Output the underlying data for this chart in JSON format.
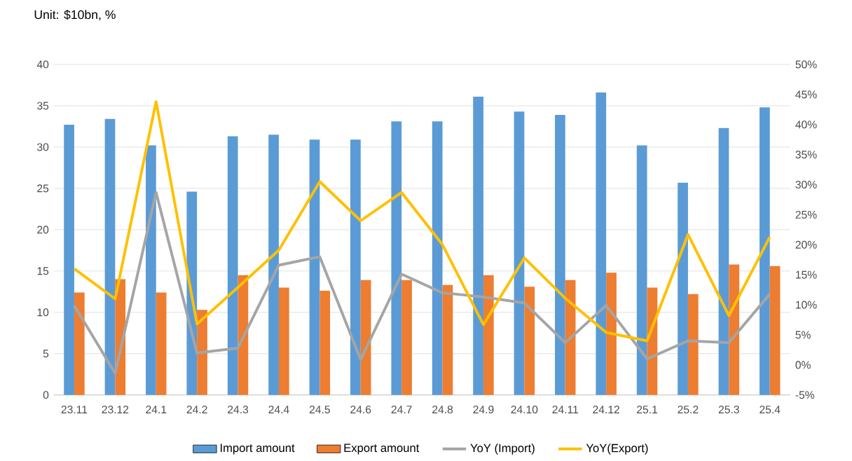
{
  "chart_data": {
    "type": "bar",
    "title": "Unit: $10bn, %",
    "categories": [
      "23.11",
      "23.12",
      "24.1",
      "24.2",
      "24.3",
      "24.4",
      "24.5",
      "24.6",
      "24.7",
      "24.8",
      "24.9",
      "24.10",
      "24.11",
      "24.12",
      "25.1",
      "25.2",
      "25.3",
      "25.4"
    ],
    "series": [
      {
        "name": "Import amount",
        "color": "#5b9bd5",
        "values": [
          32.7,
          33.4,
          30.2,
          24.6,
          31.3,
          31.5,
          30.9,
          30.9,
          33.1,
          33.1,
          36.1,
          34.3,
          33.9,
          36.6,
          30.2,
          25.7,
          32.3,
          34.8
        ]
      },
      {
        "name": "Export amount",
        "color": "#ed7d31",
        "values": [
          12.4,
          14.0,
          12.4,
          10.3,
          14.5,
          13.0,
          12.6,
          13.9,
          13.9,
          13.3,
          14.5,
          13.1,
          13.9,
          14.8,
          13.0,
          12.2,
          15.8,
          15.6
        ]
      },
      {
        "name": "YoY (Import)",
        "type": "line",
        "axis": "y2",
        "color": "#a5a5a5",
        "values": [
          9.9,
          -1.4,
          28.7,
          2.0,
          2.8,
          16.6,
          18.0,
          0.9,
          15.1,
          12.0,
          11.3,
          10.3,
          3.7,
          9.9,
          1.0,
          4.0,
          3.7,
          11.8
        ]
      },
      {
        "name": "YoY(Export)",
        "type": "line",
        "axis": "y2",
        "color": "#ffc000",
        "values": [
          16.0,
          11.0,
          43.8,
          6.8,
          12.9,
          19.1,
          30.5,
          24.0,
          28.7,
          20.0,
          6.7,
          17.8,
          11.1,
          5.4,
          4.0,
          21.7,
          8.2,
          21.3
        ]
      }
    ],
    "ylim": [
      0,
      40
    ],
    "yticks": [
      0,
      5,
      10,
      15,
      20,
      25,
      30,
      35,
      40
    ],
    "y2lim": [
      -5,
      50
    ],
    "y2ticks": [
      {
        "value": -5,
        "label": "-5%"
      },
      {
        "value": 0,
        "label": "0%"
      },
      {
        "value": 5,
        "label": "5%"
      },
      {
        "value": 10,
        "label": "10%"
      },
      {
        "value": 15,
        "label": "15%"
      },
      {
        "value": 20,
        "label": "20%"
      },
      {
        "value": 25,
        "label": "25%"
      },
      {
        "value": 30,
        "label": "30%"
      },
      {
        "value": 35,
        "label": "35%"
      },
      {
        "value": 40,
        "label": "40%"
      },
      {
        "value": 45,
        "label": "45%"
      },
      {
        "value": 50,
        "label": "50%"
      }
    ],
    "grid": "y",
    "legend": "bottom"
  }
}
